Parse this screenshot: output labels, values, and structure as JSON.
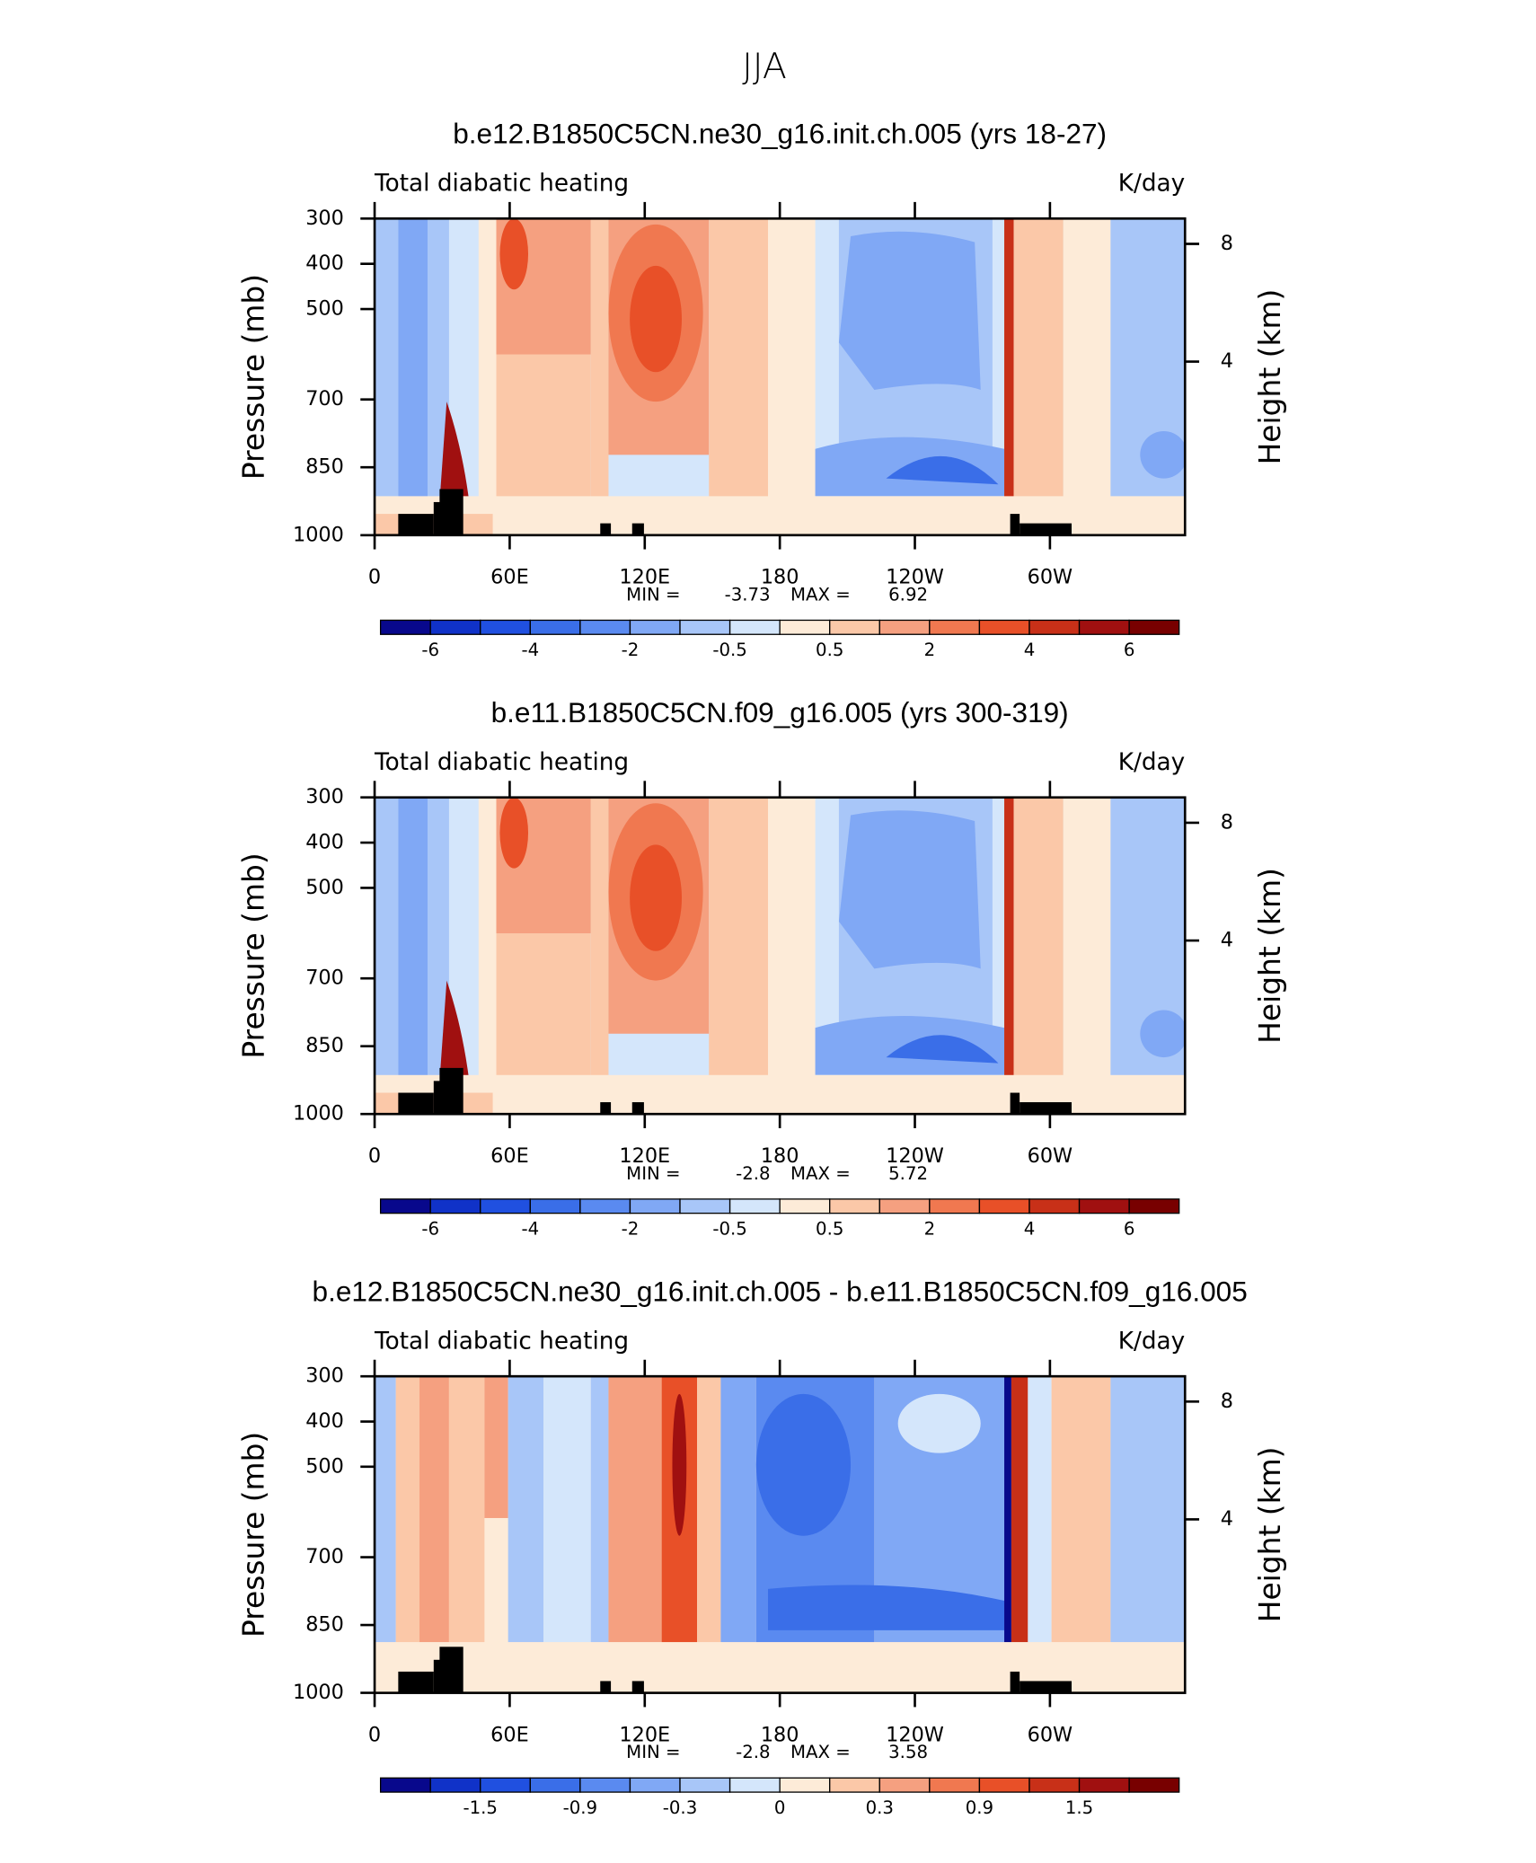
{
  "title": "JJA",
  "chart_data": [
    {
      "type": "contour",
      "title": "b.e12.B1850C5CN.ne30_g16.init.ch.005 (yrs 18-27)",
      "left_label": "Total diabatic heating",
      "right_label": "K/day",
      "ylabel": "Pressure (mb)",
      "y2label": "Height (km)",
      "xlim": [
        0,
        360
      ],
      "xticks": [
        0,
        {
          "value": 60,
          "label": "60E"
        },
        {
          "value": 120,
          "label": "120E"
        },
        180,
        {
          "value": 240,
          "label": "120W"
        },
        {
          "value": 300,
          "label": "60W"
        }
      ],
      "ylim": [
        1000,
        300
      ],
      "yticks": [
        300,
        400,
        500,
        700,
        850,
        1000
      ],
      "y2ticks": [
        8,
        4
      ],
      "min_label": "MIN =",
      "min": -3.73,
      "max_label": "MAX =",
      "max": 6.92,
      "colorbar": {
        "colors": [
          "#08088c",
          "#1032c8",
          "#2050e0",
          "#3a6ee8",
          "#5a8af0",
          "#80a8f5",
          "#a8c6f8",
          "#d4e6fb",
          "#fdebd8",
          "#fbc8a8",
          "#f5a080",
          "#f07850",
          "#e85028",
          "#c83018",
          "#a01010",
          "#780000"
        ],
        "ticks": [
          -6,
          -4,
          -2,
          -0.5,
          0.5,
          2,
          4,
          6
        ]
      }
    },
    {
      "type": "contour",
      "title": "b.e11.B1850C5CN.f09_g16.005 (yrs 300-319)",
      "left_label": "Total diabatic heating",
      "right_label": "K/day",
      "ylabel": "Pressure (mb)",
      "y2label": "Height (km)",
      "xlim": [
        0,
        360
      ],
      "xticks": [
        0,
        {
          "value": 60,
          "label": "60E"
        },
        {
          "value": 120,
          "label": "120E"
        },
        180,
        {
          "value": 240,
          "label": "120W"
        },
        {
          "value": 300,
          "label": "60W"
        }
      ],
      "ylim": [
        1000,
        300
      ],
      "yticks": [
        300,
        400,
        500,
        700,
        850,
        1000
      ],
      "y2ticks": [
        8,
        4
      ],
      "min_label": "MIN =",
      "min": -2.8,
      "max_label": "MAX =",
      "max": 5.72,
      "colorbar": {
        "colors": [
          "#08088c",
          "#1032c8",
          "#2050e0",
          "#3a6ee8",
          "#5a8af0",
          "#80a8f5",
          "#a8c6f8",
          "#d4e6fb",
          "#fdebd8",
          "#fbc8a8",
          "#f5a080",
          "#f07850",
          "#e85028",
          "#c83018",
          "#a01010",
          "#780000"
        ],
        "ticks": [
          -6,
          -4,
          -2,
          -0.5,
          0.5,
          2,
          4,
          6
        ]
      }
    },
    {
      "type": "contour",
      "title": "b.e12.B1850C5CN.ne30_g16.init.ch.005 - b.e11.B1850C5CN.f09_g16.005",
      "left_label": "Total diabatic heating",
      "right_label": "K/day",
      "ylabel": "Pressure (mb)",
      "y2label": "Height (km)",
      "xlim": [
        0,
        360
      ],
      "xticks": [
        0,
        {
          "value": 60,
          "label": "60E"
        },
        {
          "value": 120,
          "label": "120E"
        },
        180,
        {
          "value": 240,
          "label": "120W"
        },
        {
          "value": 300,
          "label": "60W"
        }
      ],
      "ylim": [
        1000,
        300
      ],
      "yticks": [
        300,
        400,
        500,
        700,
        850,
        1000
      ],
      "y2ticks": [
        8,
        4
      ],
      "min_label": "MIN =",
      "min": -2.8,
      "max_label": "MAX =",
      "max": 3.58,
      "colorbar": {
        "colors": [
          "#08088c",
          "#1032c8",
          "#2050e0",
          "#3a6ee8",
          "#5a8af0",
          "#80a8f5",
          "#a8c6f8",
          "#d4e6fb",
          "#fdebd8",
          "#fbc8a8",
          "#f5a080",
          "#f07850",
          "#e85028",
          "#c83018",
          "#a01010",
          "#780000"
        ],
        "ticks": [
          -1.5,
          -0.9,
          -0.3,
          0,
          0.3,
          0.9,
          1.5
        ]
      }
    }
  ]
}
